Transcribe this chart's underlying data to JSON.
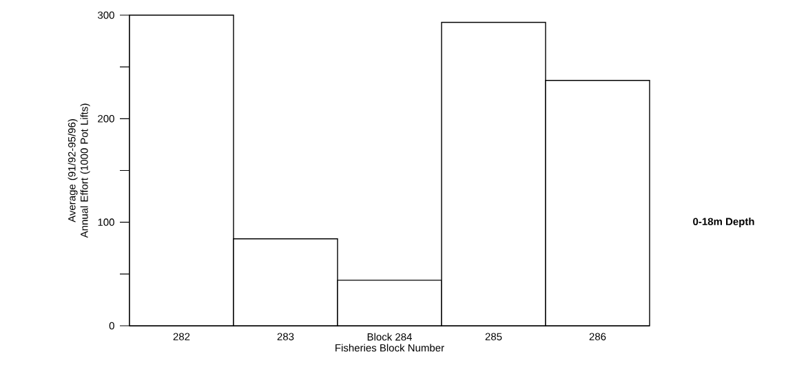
{
  "chart_data": {
    "type": "bar",
    "xlabel": "Fisheries Block Number",
    "ylabel": "Average (91/92-95/96) Annual Effort (1000 Pot Lifts)",
    "categories": [
      "282",
      "283",
      "Block 284",
      "285",
      "286"
    ],
    "values": [
      300,
      84,
      44,
      293,
      237
    ],
    "color": "#ffffff",
    "ylim": [
      0,
      300
    ],
    "yticks": [
      0,
      {
        "value": 50,
        "label": null
      },
      100,
      {
        "value": 150,
        "label": null
      },
      200,
      {
        "value": 250,
        "label": null
      },
      300
    ],
    "annotations": [
      "0-18m Depth"
    ]
  }
}
